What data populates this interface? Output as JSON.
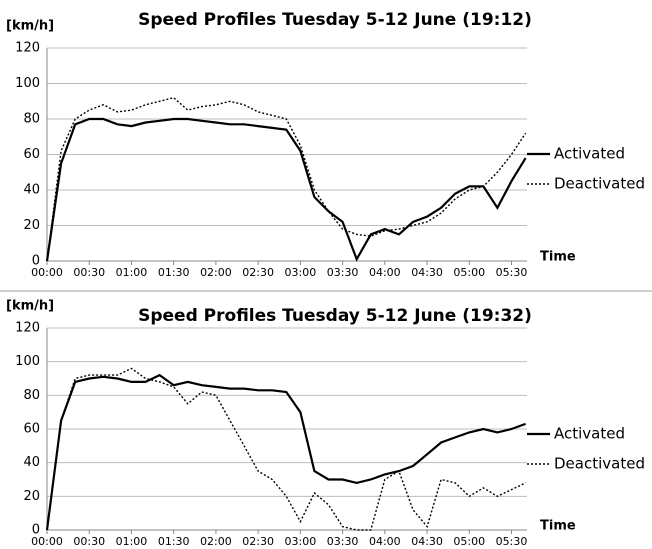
{
  "chart_data": [
    {
      "type": "line",
      "title": "Speed Profiles Tuesday 5-12 June (19:12)",
      "y_label": "[km/h]",
      "x_label": "Time",
      "x": [
        0,
        10,
        20,
        30,
        40,
        50,
        60,
        70,
        80,
        90,
        100,
        110,
        120,
        130,
        140,
        150,
        160,
        170,
        180,
        190,
        200,
        210,
        220,
        230,
        240,
        250,
        260,
        270,
        280,
        290,
        300,
        310,
        320,
        330,
        340
      ],
      "xlim": [
        0,
        341
      ],
      "xticks": [
        {
          "value": 0,
          "label": "00:00"
        },
        {
          "value": 30,
          "label": "00:30"
        },
        {
          "value": 60,
          "label": "01:00"
        },
        {
          "value": 90,
          "label": "01:30"
        },
        {
          "value": 120,
          "label": "02:00"
        },
        {
          "value": 150,
          "label": "02:30"
        },
        {
          "value": 180,
          "label": "03:00"
        },
        {
          "value": 210,
          "label": "03:30"
        },
        {
          "value": 240,
          "label": "04:00"
        },
        {
          "value": 270,
          "label": "04:30"
        },
        {
          "value": 300,
          "label": "05:00"
        },
        {
          "value": 330,
          "label": "05:30"
        }
      ],
      "ylim": [
        0,
        120
      ],
      "yticks": [
        0,
        20,
        40,
        60,
        80,
        100,
        120
      ],
      "grid": true,
      "legend": "right",
      "series": [
        {
          "name": "Activated",
          "color": "#000000",
          "linestyle": "solid",
          "values": [
            0,
            55,
            77,
            80,
            80,
            77,
            76,
            78,
            79,
            80,
            80,
            79,
            78,
            77,
            77,
            76,
            75,
            74,
            62,
            36,
            28,
            22,
            1,
            15,
            18,
            15,
            22,
            25,
            30,
            38,
            42,
            42,
            30,
            45,
            58
          ]
        },
        {
          "name": "Deactivated",
          "color": "#000000",
          "linestyle": "dotted",
          "values": [
            0,
            62,
            80,
            85,
            88,
            84,
            85,
            88,
            90,
            92,
            85,
            87,
            88,
            90,
            88,
            84,
            82,
            80,
            65,
            40,
            28,
            18,
            15,
            14,
            17,
            18,
            20,
            22,
            27,
            35,
            40,
            42,
            50,
            60,
            72
          ]
        }
      ]
    },
    {
      "type": "line",
      "title": "Speed Profiles Tuesday 5-12 June (19:32)",
      "y_label": "[km/h]",
      "x_label": "Time",
      "x": [
        0,
        10,
        20,
        30,
        40,
        50,
        60,
        70,
        80,
        90,
        100,
        110,
        120,
        130,
        140,
        150,
        160,
        170,
        180,
        190,
        200,
        210,
        220,
        230,
        240,
        250,
        260,
        270,
        280,
        290,
        300,
        310,
        320,
        330,
        340
      ],
      "xlim": [
        0,
        341
      ],
      "xticks": [
        {
          "value": 0,
          "label": "00:00"
        },
        {
          "value": 30,
          "label": "00:30"
        },
        {
          "value": 60,
          "label": "01:00"
        },
        {
          "value": 90,
          "label": "01:30"
        },
        {
          "value": 120,
          "label": "02:00"
        },
        {
          "value": 150,
          "label": "02:30"
        },
        {
          "value": 180,
          "label": "03:00"
        },
        {
          "value": 210,
          "label": "03:30"
        },
        {
          "value": 240,
          "label": "04:00"
        },
        {
          "value": 270,
          "label": "04:30"
        },
        {
          "value": 300,
          "label": "05:00"
        },
        {
          "value": 330,
          "label": "05:30"
        }
      ],
      "ylim": [
        0,
        120
      ],
      "yticks": [
        0,
        20,
        40,
        60,
        80,
        100,
        120
      ],
      "grid": true,
      "legend": "right",
      "series": [
        {
          "name": "Activated",
          "color": "#000000",
          "linestyle": "solid",
          "values": [
            0,
            65,
            88,
            90,
            91,
            90,
            88,
            88,
            92,
            86,
            88,
            86,
            85,
            84,
            84,
            83,
            83,
            82,
            70,
            35,
            30,
            30,
            28,
            30,
            33,
            35,
            38,
            45,
            52,
            55,
            58,
            60,
            58,
            60,
            63
          ]
        },
        {
          "name": "Deactivated",
          "color": "#000000",
          "linestyle": "dotted",
          "values": [
            0,
            65,
            90,
            92,
            92,
            92,
            96,
            90,
            88,
            85,
            75,
            82,
            80,
            65,
            50,
            35,
            30,
            20,
            5,
            22,
            15,
            2,
            0,
            0,
            30,
            35,
            12,
            2,
            30,
            28,
            20,
            25,
            20,
            24,
            28
          ]
        }
      ]
    }
  ]
}
